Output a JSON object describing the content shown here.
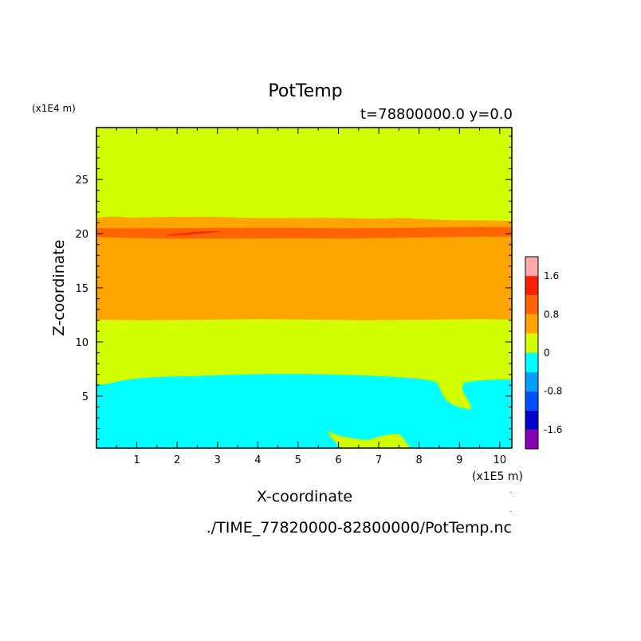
{
  "chart_data": {
    "type": "heatmap",
    "title": "PotTemp",
    "subtitle": "t=78800000.0 y=0.0",
    "xlabel": "X-coordinate",
    "ylabel": "Z-coordinate",
    "x_unit_label": "(x1E5 m)",
    "y_unit_label": "(x1E4 m)",
    "source_path": "./TIME_77820000-82800000/PotTemp.nc",
    "xlim": [
      0,
      10.3
    ],
    "ylim": [
      0.2,
      29.8
    ],
    "x_ticks": [
      1,
      2,
      3,
      4,
      5,
      6,
      7,
      8,
      9,
      10
    ],
    "x_tick_labels": [
      "1",
      "2",
      "3",
      "4",
      "5",
      "6",
      "7",
      "8",
      "9",
      "10"
    ],
    "y_ticks": [
      5,
      10,
      15,
      20,
      25
    ],
    "y_tick_labels": [
      "5",
      "10",
      "15",
      "20",
      "25"
    ],
    "colorbar": {
      "levels": [
        -2.0,
        -1.6,
        -1.2,
        -0.8,
        -0.4,
        0.0,
        0.4,
        0.8,
        1.2,
        1.6,
        2.0
      ],
      "colors": [
        "#8b00b4",
        "#0000cd",
        "#0050ff",
        "#00a0ff",
        "#00ffff",
        "#d2ff00",
        "#ffa500",
        "#ff6400",
        "#ff1e00",
        "#ffaaaa"
      ],
      "tick_values": [
        -1.6,
        -0.8,
        0,
        0.8,
        1.6
      ],
      "tick_labels": [
        "-1.6",
        "-0.8",
        "0",
        "0.8",
        "1.6"
      ]
    },
    "regions": [
      {
        "level": "0 to 0.4",
        "color": "#d2ff00",
        "x": [
          0,
          10.3
        ],
        "z": [
          0.2,
          29.8
        ]
      },
      {
        "level": "-0.4 to 0",
        "color": "#00ffff",
        "x": [
          0,
          10.3
        ],
        "z": [
          0.2,
          7.0
        ]
      },
      {
        "level": "0.4 to 0.8",
        "color": "#ffa500",
        "x": [
          0,
          10.3
        ],
        "z": [
          12.0,
          21.3
        ]
      },
      {
        "level": "0.8 to 1.2",
        "color": "#ff6400",
        "x": [
          0,
          10.3
        ],
        "z": [
          19.5,
          20.6
        ]
      },
      {
        "level": "1.2 to 1.6",
        "color": "#ff1e00",
        "x": [
          1.6,
          3.1
        ],
        "z": [
          20.0,
          20.4
        ]
      }
    ]
  }
}
